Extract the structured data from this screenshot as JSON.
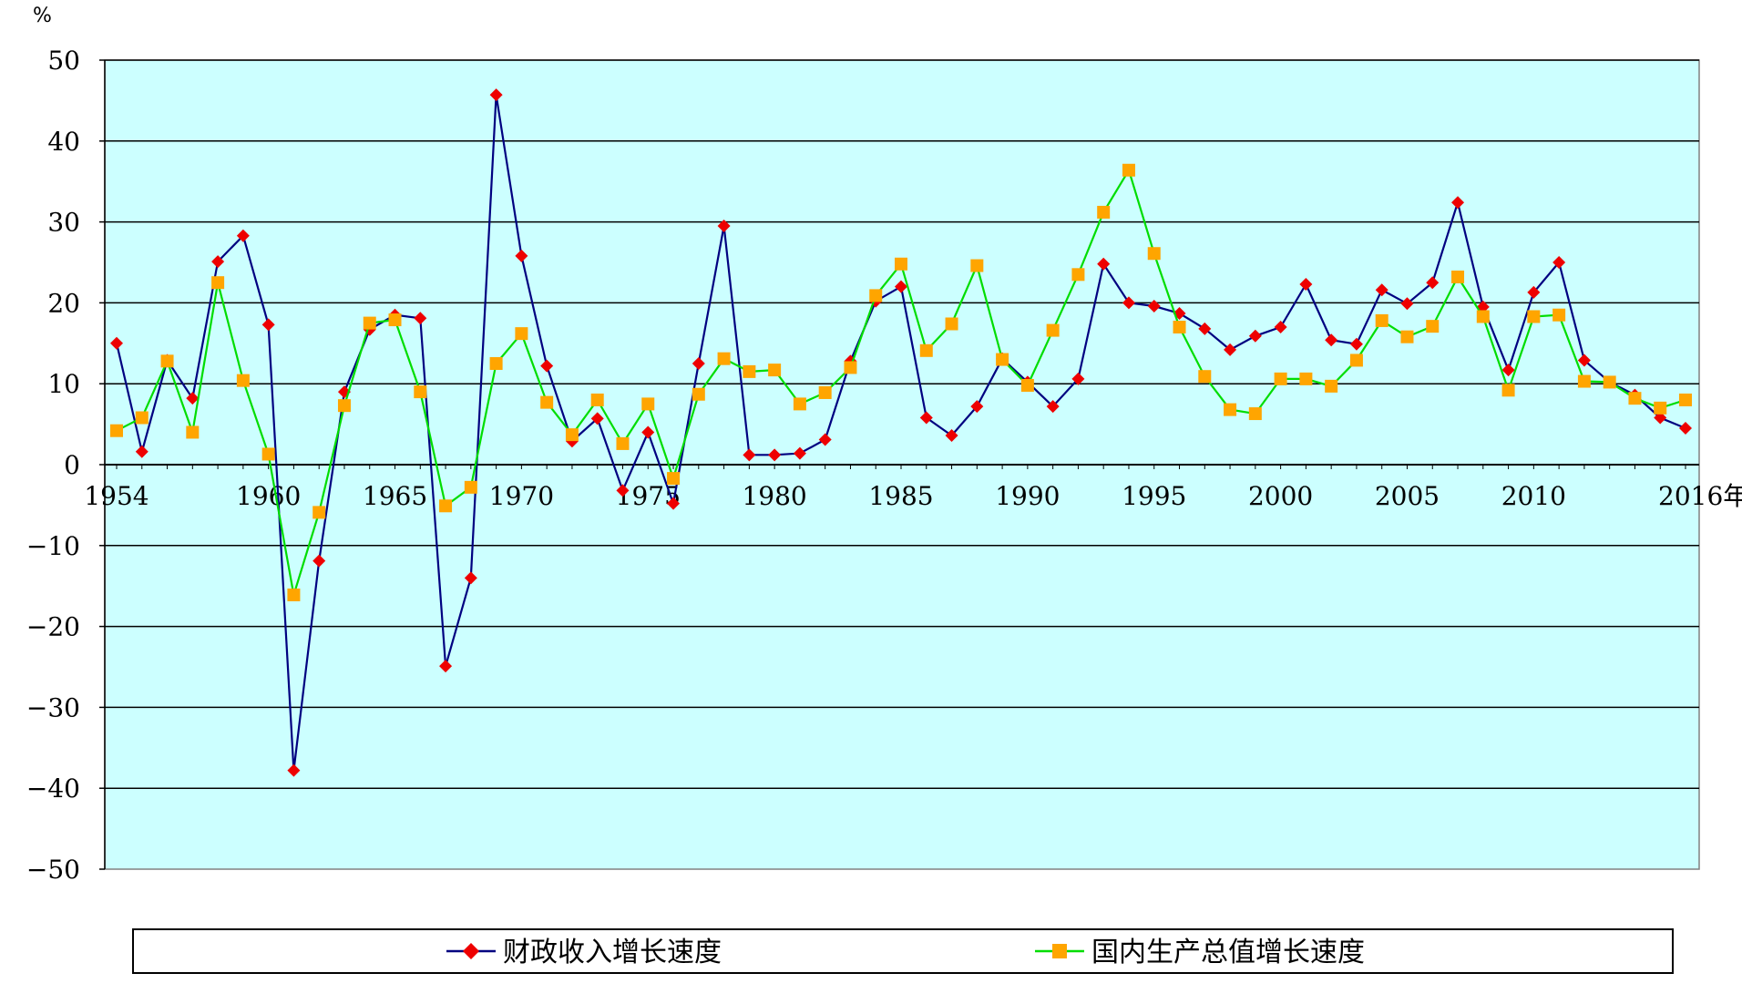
{
  "chart_data": {
    "type": "line",
    "title": "",
    "unit_label": "%",
    "x_end_label": "2016年",
    "xlabel": "",
    "ylabel": "",
    "ylim": [
      -50,
      50
    ],
    "yticks": [
      "50",
      "40",
      "30",
      "20",
      "10",
      "0",
      "−10",
      "−20",
      "−30",
      "−40",
      "−50"
    ],
    "xticks": [
      "1954",
      "1960",
      "1965",
      "1970",
      "1975",
      "1980",
      "1985",
      "1990",
      "1995",
      "2000",
      "2005",
      "2010",
      "2016年"
    ],
    "xtick_years": [
      1954,
      1960,
      1965,
      1970,
      1975,
      1980,
      1985,
      1990,
      1995,
      2000,
      2005,
      2010,
      2016
    ],
    "x": [
      1954,
      1955,
      1956,
      1957,
      1958,
      1959,
      1960,
      1961,
      1962,
      1963,
      1964,
      1965,
      1966,
      1967,
      1968,
      1969,
      1970,
      1971,
      1972,
      1973,
      1974,
      1975,
      1976,
      1977,
      1978,
      1979,
      1980,
      1981,
      1982,
      1983,
      1984,
      1985,
      1986,
      1987,
      1988,
      1989,
      1990,
      1991,
      1992,
      1993,
      1994,
      1995,
      1996,
      1997,
      1998,
      1999,
      2000,
      2001,
      2002,
      2003,
      2004,
      2005,
      2006,
      2007,
      2008,
      2009,
      2010,
      2011,
      2012,
      2013,
      2014,
      2015,
      2016
    ],
    "grid": true,
    "plot_background": "#ccffff",
    "legend_position": "bottom",
    "series": [
      {
        "name": "财政收入增长速度",
        "color": "#000080",
        "marker_color": "#ee0000",
        "marker": "diamond",
        "values": [
          15.0,
          1.6,
          12.9,
          8.2,
          25.1,
          28.3,
          17.3,
          -37.8,
          -11.9,
          9.0,
          16.7,
          18.5,
          18.1,
          -24.9,
          -14.0,
          45.7,
          25.8,
          12.2,
          2.9,
          5.7,
          -3.2,
          4.0,
          -4.8,
          12.5,
          29.5,
          1.2,
          1.2,
          1.4,
          3.1,
          12.8,
          20.2,
          22.0,
          5.8,
          3.6,
          7.2,
          13.1,
          10.2,
          7.2,
          10.6,
          24.8,
          20.0,
          19.6,
          18.7,
          16.8,
          14.2,
          15.9,
          17.0,
          22.3,
          15.4,
          14.9,
          21.6,
          19.9,
          22.5,
          32.4,
          19.5,
          11.7,
          21.3,
          25.0,
          12.9,
          10.2,
          8.6,
          5.8,
          4.5
        ]
      },
      {
        "name": "国内生产总值增长速度",
        "color": "#00dd00",
        "marker_color": "#ffa500",
        "marker": "square",
        "values": [
          4.2,
          5.8,
          12.8,
          4.0,
          22.5,
          10.4,
          1.3,
          -16.1,
          -5.9,
          7.3,
          17.5,
          17.9,
          9.0,
          -5.1,
          -2.8,
          12.5,
          16.2,
          7.7,
          3.7,
          8.0,
          2.6,
          7.5,
          -1.7,
          8.7,
          13.1,
          11.5,
          11.7,
          7.5,
          8.9,
          12.0,
          20.9,
          24.8,
          14.1,
          17.4,
          24.6,
          13.0,
          9.8,
          16.6,
          23.5,
          31.2,
          36.4,
          26.1,
          17.0,
          10.9,
          6.8,
          6.3,
          10.6,
          10.6,
          9.7,
          12.9,
          17.8,
          15.8,
          17.1,
          23.2,
          18.3,
          9.2,
          18.3,
          18.5,
          10.3,
          10.2,
          8.2,
          7.0,
          8.0
        ]
      }
    ]
  }
}
